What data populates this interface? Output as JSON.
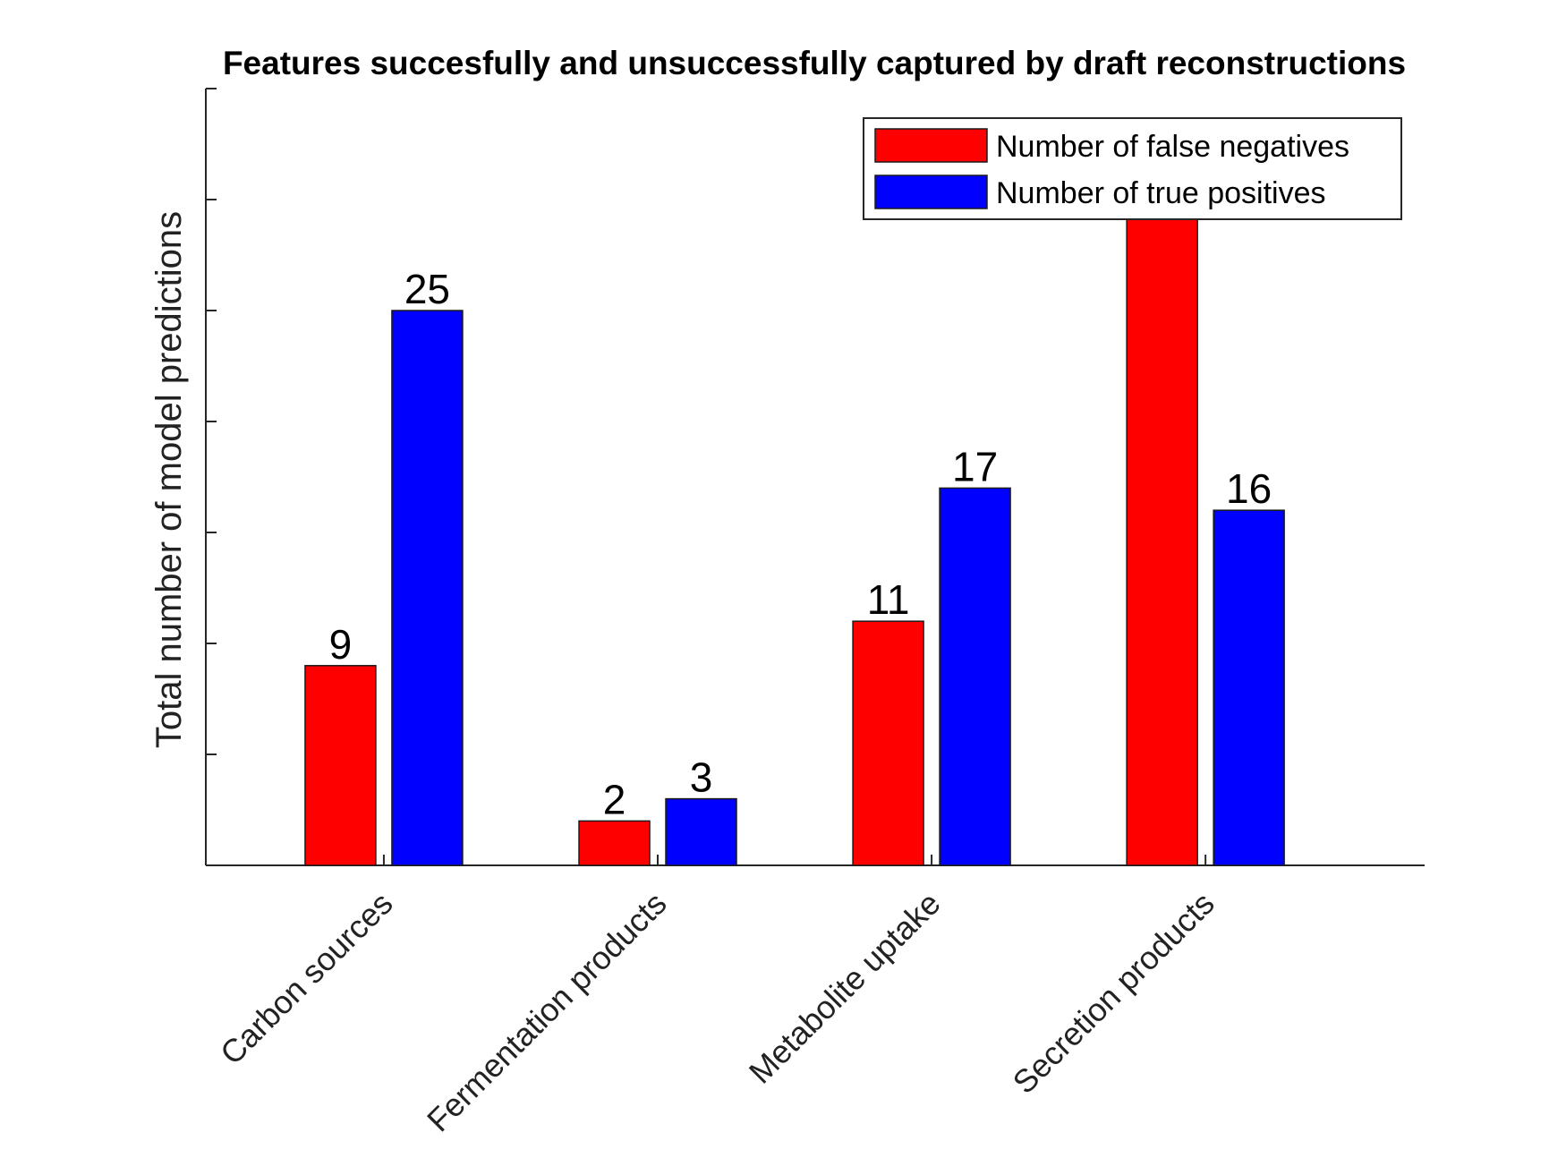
{
  "chart_data": {
    "type": "bar",
    "title": "Features succesfully and unsuccessfully captured by draft reconstructions",
    "xlabel": "",
    "ylabel": "Total number of model predictions",
    "categories": [
      "Carbon sources",
      "Fermentation products",
      "Metabolite uptake",
      "Secretion products"
    ],
    "series": [
      {
        "name": "Number of false negatives",
        "color": "#ff0000",
        "values": [
          9,
          2,
          11,
          30
        ]
      },
      {
        "name": "Number of true positives",
        "color": "#0000ff",
        "values": [
          25,
          3,
          17,
          16
        ]
      }
    ],
    "data_labels": [
      [
        "9",
        "2",
        "11",
        ""
      ],
      [
        "25",
        "3",
        "17",
        "16"
      ]
    ],
    "ylim": [
      0,
      35
    ],
    "yticks": [
      0,
      5,
      10,
      15,
      20,
      25,
      30,
      35
    ],
    "ytick_labels_visible": false,
    "grid": false,
    "legend": "top-right"
  }
}
